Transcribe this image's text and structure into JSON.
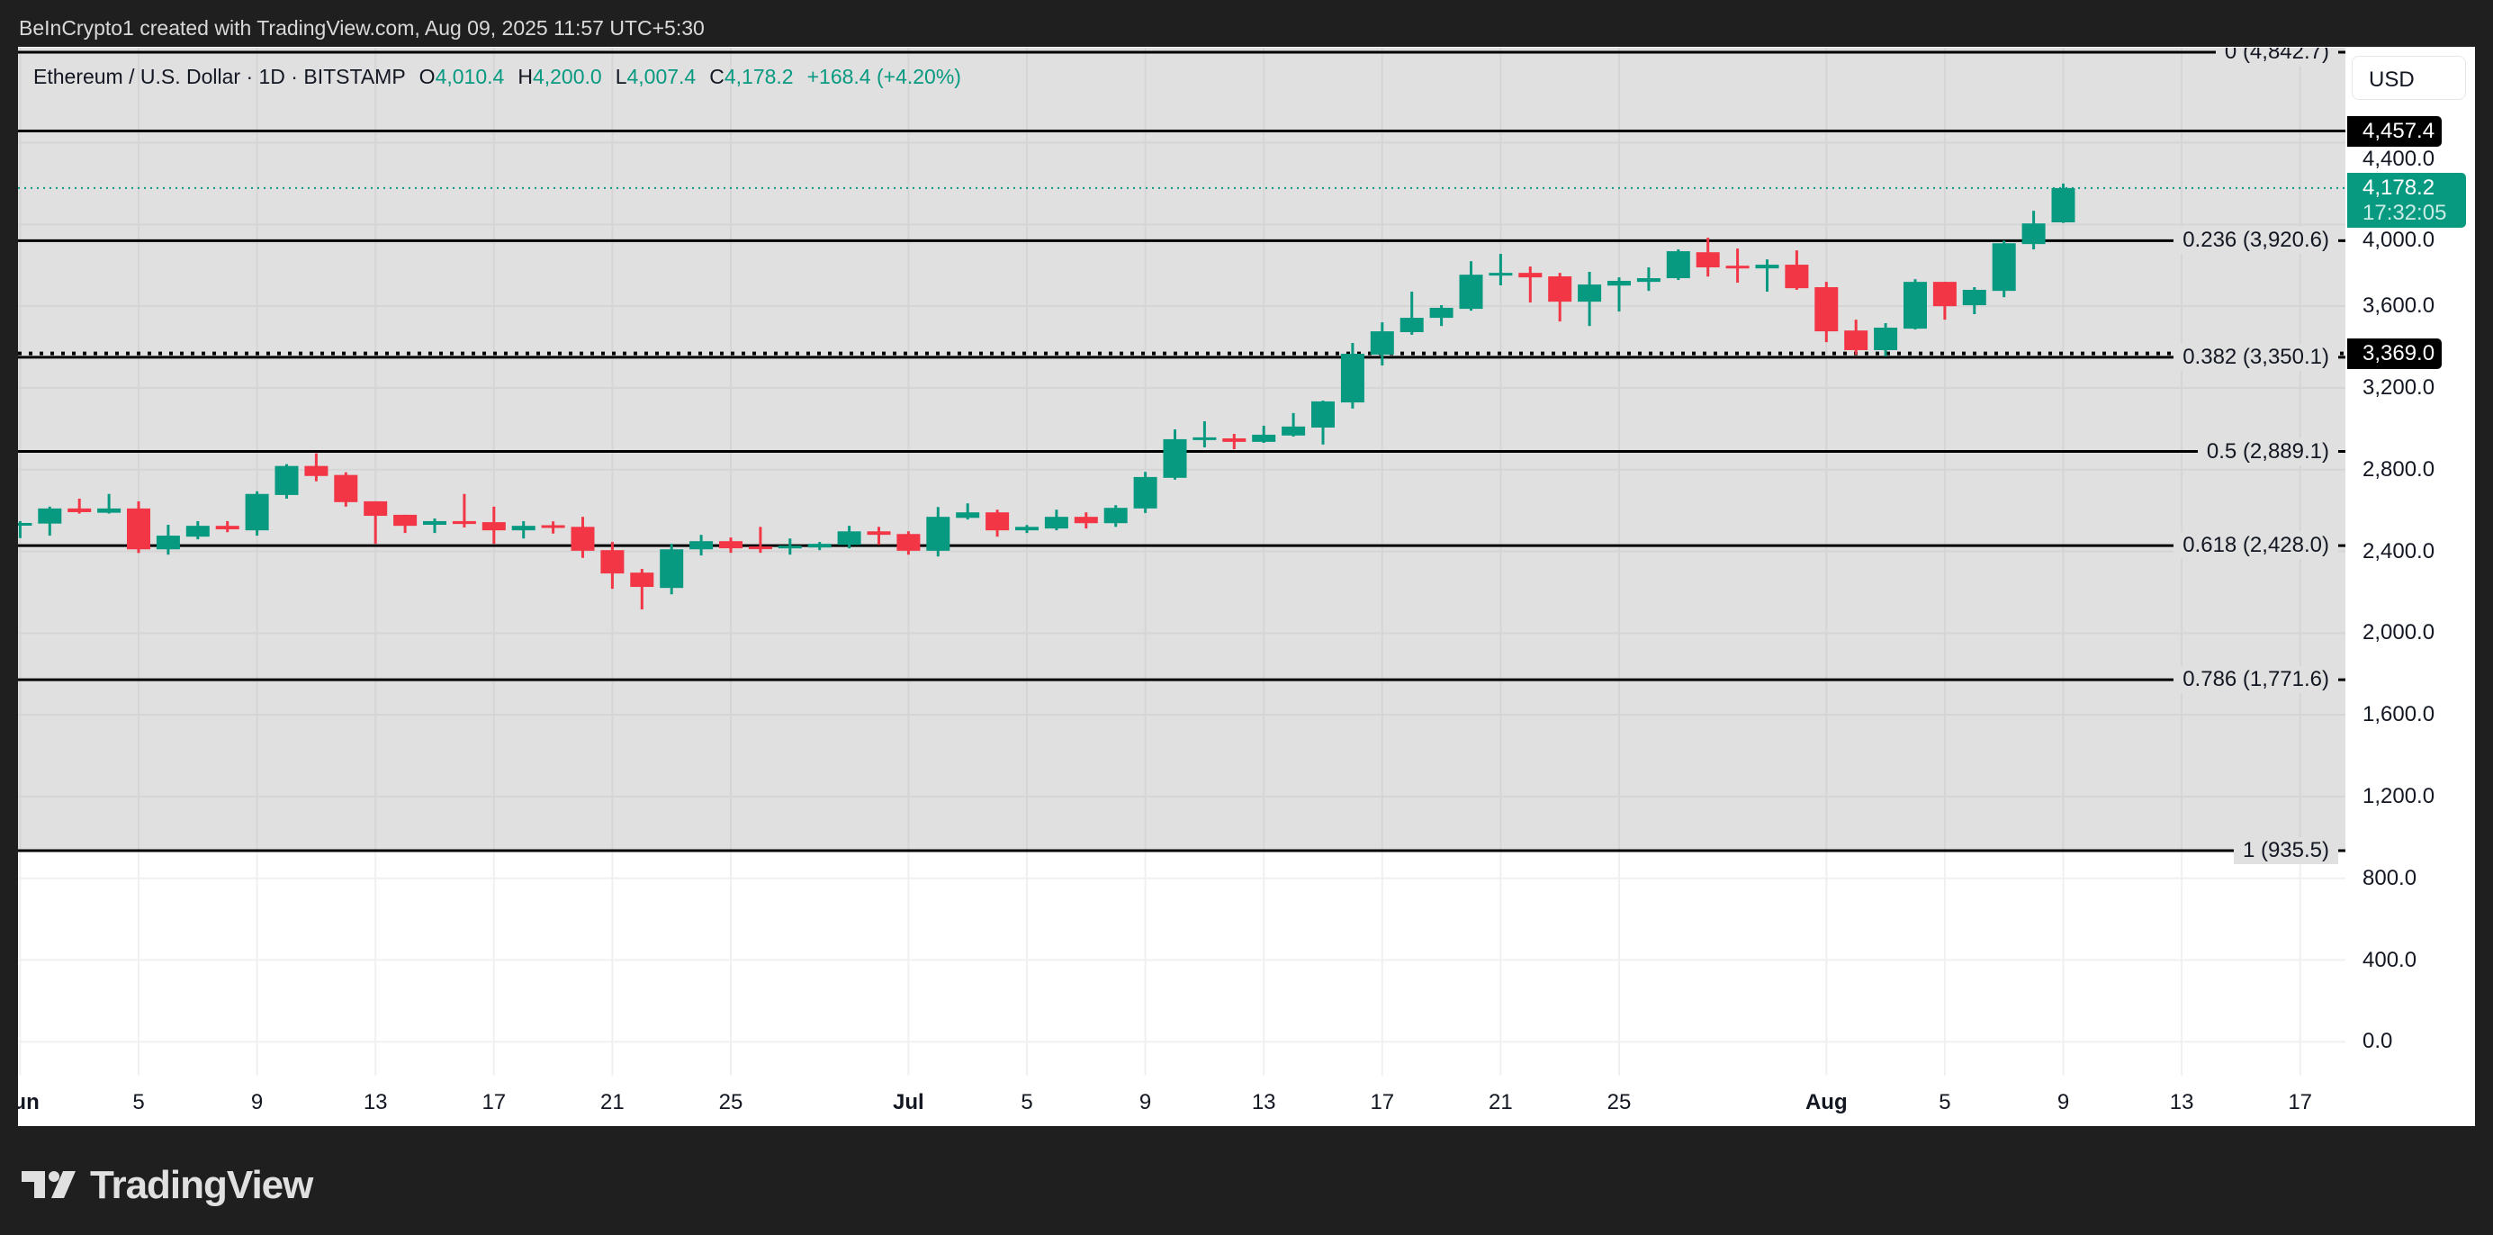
{
  "header": {
    "attribution": "BeInCrypto1 created with TradingView.com, Aug 09, 2025 11:57 UTC+5:30"
  },
  "legend": {
    "symbol": "Ethereum / U.S. Dollar · 1D · BITSTAMP",
    "o_label": "O",
    "o": "4,010.4",
    "h_label": "H",
    "h": "4,200.0",
    "l_label": "L",
    "l": "4,007.4",
    "c_label": "C",
    "c": "4,178.2",
    "change": "+168.4 (+4.20%)"
  },
  "price_axis": {
    "currency": "USD",
    "ticks": [
      {
        "value": 0,
        "label": "0.0"
      },
      {
        "value": 400,
        "label": "400.0"
      },
      {
        "value": 800,
        "label": "800.0"
      },
      {
        "value": 1200,
        "label": "1,200.0"
      },
      {
        "value": 1600,
        "label": "1,600.0"
      },
      {
        "value": 2000,
        "label": "2,000.0"
      },
      {
        "value": 2400,
        "label": "2,400.0"
      },
      {
        "value": 2800,
        "label": "2,800.0"
      },
      {
        "value": 3200,
        "label": "3,200.0"
      },
      {
        "value": 3600,
        "label": "3,600.0"
      },
      {
        "value": 4000,
        "label": "4,000.0"
      },
      {
        "value": 4400,
        "label": "4,400.0"
      }
    ]
  },
  "chart_data": {
    "type": "candlestick",
    "ylim": [
      -166,
      4865
    ],
    "xlim": [
      "2025-06-01",
      "2025-08-18"
    ],
    "grid": true,
    "colors": {
      "up": "#089981",
      "down": "#f23645",
      "fib_zone": "#e0e0e0",
      "fib_line": "#000000",
      "last_price": "#089981"
    },
    "x_ticks": [
      {
        "date": "2025-06-01",
        "label": "Jun",
        "month": true
      },
      {
        "date": "2025-06-05",
        "label": "5"
      },
      {
        "date": "2025-06-09",
        "label": "9"
      },
      {
        "date": "2025-06-13",
        "label": "13"
      },
      {
        "date": "2025-06-17",
        "label": "17"
      },
      {
        "date": "2025-06-21",
        "label": "21"
      },
      {
        "date": "2025-06-25",
        "label": "25"
      },
      {
        "date": "2025-07-01",
        "label": "Jul",
        "month": true
      },
      {
        "date": "2025-07-05",
        "label": "5"
      },
      {
        "date": "2025-07-09",
        "label": "9"
      },
      {
        "date": "2025-07-13",
        "label": "13"
      },
      {
        "date": "2025-07-17",
        "label": "17"
      },
      {
        "date": "2025-07-21",
        "label": "21"
      },
      {
        "date": "2025-07-25",
        "label": "25"
      },
      {
        "date": "2025-08-01",
        "label": "Aug",
        "month": true
      },
      {
        "date": "2025-08-05",
        "label": "5"
      },
      {
        "date": "2025-08-09",
        "label": "9"
      },
      {
        "date": "2025-08-13",
        "label": "13"
      },
      {
        "date": "2025-08-17",
        "label": "17"
      }
    ],
    "candles": [
      [
        "2025-06-01",
        2527,
        2548,
        2465,
        2539
      ],
      [
        "2025-06-02",
        2536,
        2619,
        2477,
        2610
      ],
      [
        "2025-06-03",
        2610,
        2658,
        2585,
        2592
      ],
      [
        "2025-06-04",
        2589,
        2681,
        2585,
        2610
      ],
      [
        "2025-06-05",
        2610,
        2645,
        2392,
        2410
      ],
      [
        "2025-06-06",
        2410,
        2530,
        2384,
        2477
      ],
      [
        "2025-06-07",
        2472,
        2548,
        2459,
        2525
      ],
      [
        "2025-06-08",
        2525,
        2548,
        2494,
        2508
      ],
      [
        "2025-06-09",
        2503,
        2694,
        2477,
        2681
      ],
      [
        "2025-06-10",
        2676,
        2827,
        2658,
        2818
      ],
      [
        "2025-06-11",
        2818,
        2880,
        2743,
        2769
      ],
      [
        "2025-06-12",
        2774,
        2787,
        2619,
        2641
      ],
      [
        "2025-06-13",
        2645,
        2645,
        2437,
        2574
      ],
      [
        "2025-06-14",
        2579,
        2579,
        2490,
        2525
      ],
      [
        "2025-06-15",
        2530,
        2561,
        2490,
        2548
      ],
      [
        "2025-06-16",
        2548,
        2681,
        2517,
        2534
      ],
      [
        "2025-06-17",
        2543,
        2619,
        2437,
        2503
      ],
      [
        "2025-06-18",
        2503,
        2548,
        2463,
        2525
      ],
      [
        "2025-06-19",
        2528,
        2547,
        2487,
        2525
      ],
      [
        "2025-06-20",
        2520,
        2569,
        2368,
        2403
      ],
      [
        "2025-06-21",
        2406,
        2446,
        2217,
        2292
      ],
      [
        "2025-06-22",
        2296,
        2314,
        2116,
        2226
      ],
      [
        "2025-06-23",
        2221,
        2437,
        2190,
        2410
      ],
      [
        "2025-06-24",
        2410,
        2481,
        2380,
        2450
      ],
      [
        "2025-06-25",
        2450,
        2468,
        2393,
        2415
      ],
      [
        "2025-06-26",
        2424,
        2520,
        2393,
        2415
      ],
      [
        "2025-06-27",
        2419,
        2463,
        2384,
        2428
      ],
      [
        "2025-06-28",
        2419,
        2446,
        2406,
        2437
      ],
      [
        "2025-06-29",
        2432,
        2525,
        2415,
        2498
      ],
      [
        "2025-06-30",
        2498,
        2520,
        2432,
        2481
      ],
      [
        "2025-07-01",
        2485,
        2498,
        2384,
        2403
      ],
      [
        "2025-07-02",
        2403,
        2617,
        2375,
        2569
      ],
      [
        "2025-07-03",
        2564,
        2635,
        2556,
        2591
      ],
      [
        "2025-07-04",
        2591,
        2604,
        2472,
        2503
      ],
      [
        "2025-07-05",
        2503,
        2529,
        2490,
        2520
      ],
      [
        "2025-07-06",
        2512,
        2604,
        2503,
        2569
      ],
      [
        "2025-07-07",
        2569,
        2591,
        2512,
        2538
      ],
      [
        "2025-07-08",
        2538,
        2626,
        2520,
        2613
      ],
      [
        "2025-07-09",
        2610,
        2789,
        2588,
        2764
      ],
      [
        "2025-07-10",
        2760,
        2997,
        2751,
        2949
      ],
      [
        "2025-07-11",
        2949,
        3037,
        2909,
        2958
      ],
      [
        "2025-07-12",
        2953,
        2975,
        2900,
        2936
      ],
      [
        "2025-07-13",
        2936,
        3015,
        2931,
        2971
      ],
      [
        "2025-07-14",
        2967,
        3077,
        2962,
        3011
      ],
      [
        "2025-07-15",
        3006,
        3138,
        2923,
        3134
      ],
      [
        "2025-07-16",
        3129,
        3420,
        3099,
        3367
      ],
      [
        "2025-07-17",
        3363,
        3521,
        3310,
        3477
      ],
      [
        "2025-07-18",
        3473,
        3671,
        3460,
        3543
      ],
      [
        "2025-07-19",
        3543,
        3605,
        3503,
        3592
      ],
      [
        "2025-07-20",
        3587,
        3820,
        3578,
        3754
      ],
      [
        "2025-07-21",
        3754,
        3856,
        3702,
        3763
      ],
      [
        "2025-07-22",
        3763,
        3794,
        3618,
        3741
      ],
      [
        "2025-07-23",
        3746,
        3763,
        3525,
        3622
      ],
      [
        "2025-07-24",
        3622,
        3768,
        3503,
        3706
      ],
      [
        "2025-07-25",
        3701,
        3741,
        3574,
        3724
      ],
      [
        "2025-07-26",
        3719,
        3790,
        3675,
        3737
      ],
      [
        "2025-07-27",
        3737,
        3878,
        3728,
        3869
      ],
      [
        "2025-07-28",
        3864,
        3935,
        3745,
        3790
      ],
      [
        "2025-07-29",
        3798,
        3882,
        3715,
        3790
      ],
      [
        "2025-07-30",
        3785,
        3829,
        3671,
        3803
      ],
      [
        "2025-07-31",
        3803,
        3873,
        3680,
        3688
      ],
      [
        "2025-08-01",
        3693,
        3719,
        3424,
        3477
      ],
      [
        "2025-08-02",
        3481,
        3534,
        3363,
        3385
      ],
      [
        "2025-08-03",
        3385,
        3517,
        3354,
        3495
      ],
      [
        "2025-08-04",
        3490,
        3732,
        3486,
        3719
      ],
      [
        "2025-08-05",
        3719,
        3719,
        3534,
        3600
      ],
      [
        "2025-08-06",
        3605,
        3693,
        3561,
        3680
      ],
      [
        "2025-08-07",
        3675,
        3921,
        3644,
        3908
      ],
      [
        "2025-08-08",
        3904,
        4067,
        3878,
        4005
      ],
      [
        "2025-08-09",
        4010.4,
        4200.0,
        4007.4,
        4178.2
      ]
    ],
    "fib_levels": [
      {
        "ratio": 0,
        "price": 4842.7,
        "label": "0 (4,842.7)"
      },
      {
        "ratio": 0.236,
        "price": 3920.6,
        "label": "0.236 (3,920.6)"
      },
      {
        "ratio": 0.382,
        "price": 3350.1,
        "label": "0.382 (3,350.1)"
      },
      {
        "ratio": 0.5,
        "price": 2889.1,
        "label": "0.5 (2,889.1)"
      },
      {
        "ratio": 0.618,
        "price": 2428.0,
        "label": "0.618 (2,428.0)"
      },
      {
        "ratio": 0.786,
        "price": 1771.6,
        "label": "0.786 (1,771.6)"
      },
      {
        "ratio": 1,
        "price": 935.5,
        "label": "1 (935.5)"
      }
    ],
    "horizontal_lines": [
      {
        "price": 4457.4,
        "label": "4,457.4",
        "style": "solid"
      },
      {
        "price": 3369.0,
        "label": "3,369.0",
        "style": "dotted"
      }
    ],
    "last_price": {
      "price": 4178.2,
      "label": "4,178.2",
      "countdown": "17:32:05"
    }
  },
  "branding": {
    "logo_text": "TradingView"
  }
}
